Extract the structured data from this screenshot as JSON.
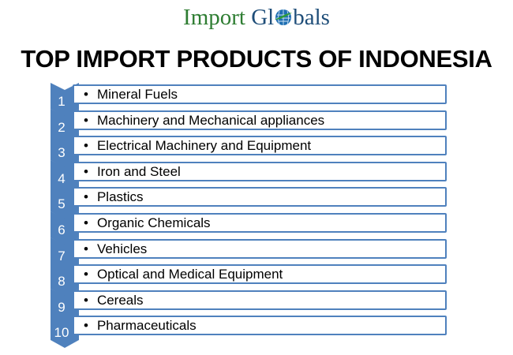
{
  "logo": {
    "part1": "Import",
    "part2": "Gl",
    "part3": "bals",
    "globe_icon": "globe-icon",
    "colors": {
      "green": "#2e7d32",
      "blue": "#1f4e79"
    }
  },
  "title": "TOP IMPORT PRODUCTS OF INDONESIA",
  "accent_color": "#4f81bd",
  "items": [
    {
      "num": "1",
      "label": "Mineral Fuels"
    },
    {
      "num": "2",
      "label": "Machinery and Mechanical appliances"
    },
    {
      "num": "3",
      "label": "Electrical Machinery and Equipment"
    },
    {
      "num": "4",
      "label": "Iron and Steel"
    },
    {
      "num": "5",
      "label": "Plastics"
    },
    {
      "num": "6",
      "label": "Organic Chemicals"
    },
    {
      "num": "7",
      "label": "Vehicles"
    },
    {
      "num": "8",
      "label": "Optical and Medical Equipment"
    },
    {
      "num": "9",
      "label": "Cereals"
    },
    {
      "num": "10",
      "label": "Pharmaceuticals"
    }
  ]
}
